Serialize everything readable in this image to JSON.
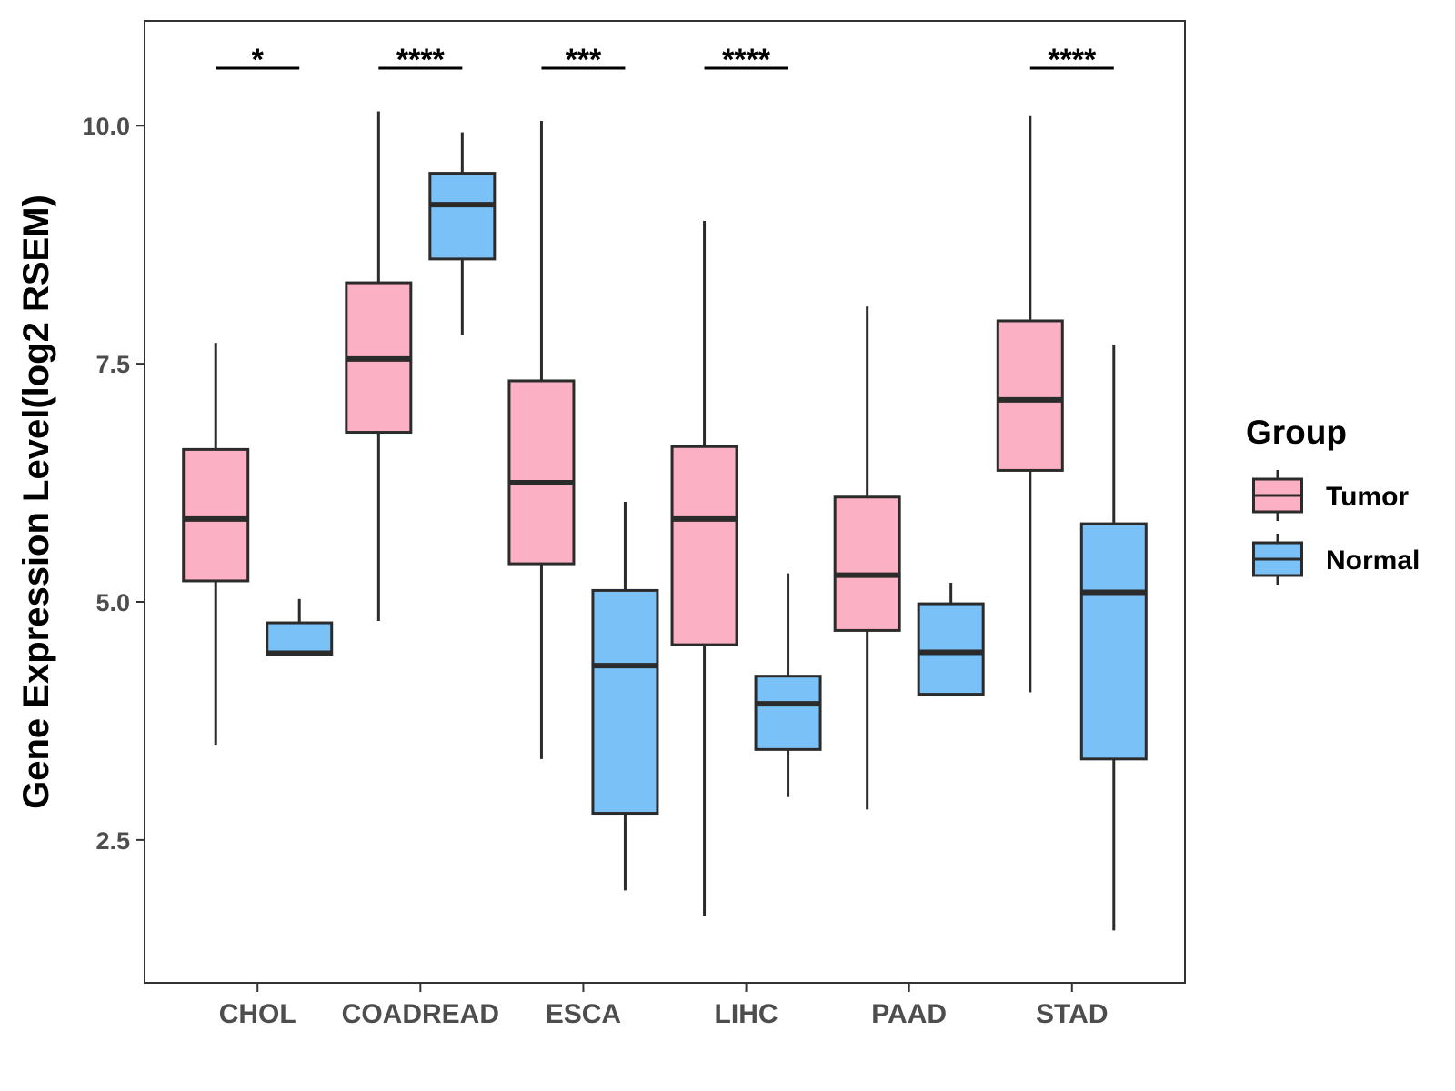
{
  "chart_data": {
    "type": "boxplot",
    "title": "",
    "xlabel": "",
    "ylabel": "Gene Expression Level(log2 RSEM)",
    "ylim": [
      1.0,
      11.1
    ],
    "yticks": [
      2.5,
      5.0,
      7.5,
      10.0
    ],
    "ytick_labels": [
      "2.5",
      "5.0",
      "7.5",
      "10.0"
    ],
    "grid": false,
    "categories": [
      "CHOL",
      "COADREAD",
      "ESCA",
      "LIHC",
      "PAAD",
      "STAD"
    ],
    "legend": {
      "title": "Group",
      "position": "right",
      "items": [
        {
          "name": "Tumor",
          "color": "#FBB1C3"
        },
        {
          "name": "Normal",
          "color": "#79C1F7"
        }
      ]
    },
    "series": [
      {
        "name": "Tumor",
        "color": "#FBB1C3",
        "boxes": [
          {
            "min": 3.5,
            "q1": 5.22,
            "median": 5.87,
            "q3": 6.6,
            "max": 7.72
          },
          {
            "min": 4.8,
            "q1": 6.78,
            "median": 7.55,
            "q3": 8.35,
            "max": 10.15
          },
          {
            "min": 3.35,
            "q1": 5.4,
            "median": 6.25,
            "q3": 7.32,
            "max": 10.05
          },
          {
            "min": 1.7,
            "q1": 4.55,
            "median": 5.87,
            "q3": 6.63,
            "max": 9.0
          },
          {
            "min": 2.82,
            "q1": 4.7,
            "median": 5.28,
            "q3": 6.1,
            "max": 8.1
          },
          {
            "min": 4.05,
            "q1": 6.38,
            "median": 7.12,
            "q3": 7.95,
            "max": 10.1
          }
        ]
      },
      {
        "name": "Normal",
        "color": "#79C1F7",
        "boxes": [
          {
            "min": 4.45,
            "q1": 4.45,
            "median": 4.46,
            "q3": 4.78,
            "max": 5.03
          },
          {
            "min": 7.8,
            "q1": 8.6,
            "median": 9.17,
            "q3": 9.5,
            "max": 9.93
          },
          {
            "min": 1.97,
            "q1": 2.78,
            "median": 4.33,
            "q3": 5.12,
            "max": 6.05
          },
          {
            "min": 2.95,
            "q1": 3.45,
            "median": 3.93,
            "q3": 4.22,
            "max": 5.3
          },
          {
            "min": 4.03,
            "q1": 4.03,
            "median": 4.47,
            "q3": 4.98,
            "max": 5.2
          },
          {
            "min": 1.55,
            "q1": 3.35,
            "median": 5.1,
            "q3": 5.82,
            "max": 7.7
          }
        ]
      }
    ],
    "significance": [
      {
        "category": "CHOL",
        "label": "*"
      },
      {
        "category": "COADREAD",
        "label": "****"
      },
      {
        "category": "ESCA",
        "label": "***"
      },
      {
        "category": "LIHC",
        "label": "****"
      },
      {
        "category": "STAD",
        "label": "****"
      }
    ]
  }
}
